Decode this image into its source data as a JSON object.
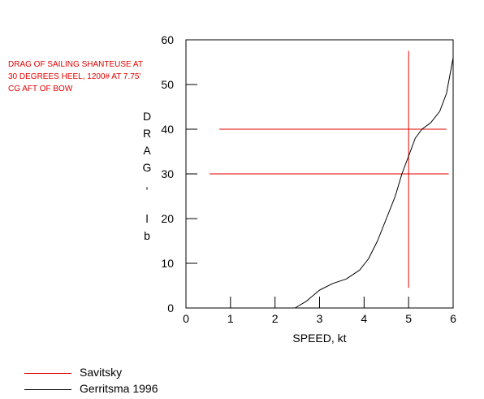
{
  "chart_data": {
    "type": "line",
    "title": "",
    "annotation": "DRAG OF SAILING SHANTEUSE AT 30 DEGREES HEEL, 1200# AT 7.75' CG AFT OF BOW",
    "xlabel": "SPEED, kt",
    "ylabel": "DRAG, lb",
    "xlim": [
      0,
      6
    ],
    "ylim": [
      0,
      60
    ],
    "xticks": [
      0,
      1,
      2,
      3,
      4,
      5,
      6
    ],
    "yticks": [
      0,
      10,
      20,
      30,
      40,
      50,
      60
    ],
    "grid": false,
    "legend_position": "bottom-left",
    "series": [
      {
        "name": "Savitsky",
        "color": "#e00000",
        "segments": [
          [
            [
              0.75,
              40
            ],
            [
              5.85,
              40
            ]
          ],
          [
            [
              0.53,
              30
            ],
            [
              5.9,
              30
            ]
          ],
          [
            [
              5.0,
              4.5
            ],
            [
              5.0,
              57.5
            ]
          ]
        ]
      },
      {
        "name": "Gerritsma 1996",
        "color": "#000000",
        "x": [
          2.45,
          2.7,
          3.0,
          3.3,
          3.6,
          3.9,
          4.1,
          4.3,
          4.5,
          4.7,
          4.85,
          5.0,
          5.15,
          5.3,
          5.5,
          5.7,
          5.85,
          6.0
        ],
        "y": [
          0,
          1.5,
          4,
          5.5,
          6.5,
          8.5,
          11,
          15,
          20,
          25,
          30,
          34,
          38,
          40,
          41.5,
          44,
          48,
          56
        ]
      }
    ]
  }
}
